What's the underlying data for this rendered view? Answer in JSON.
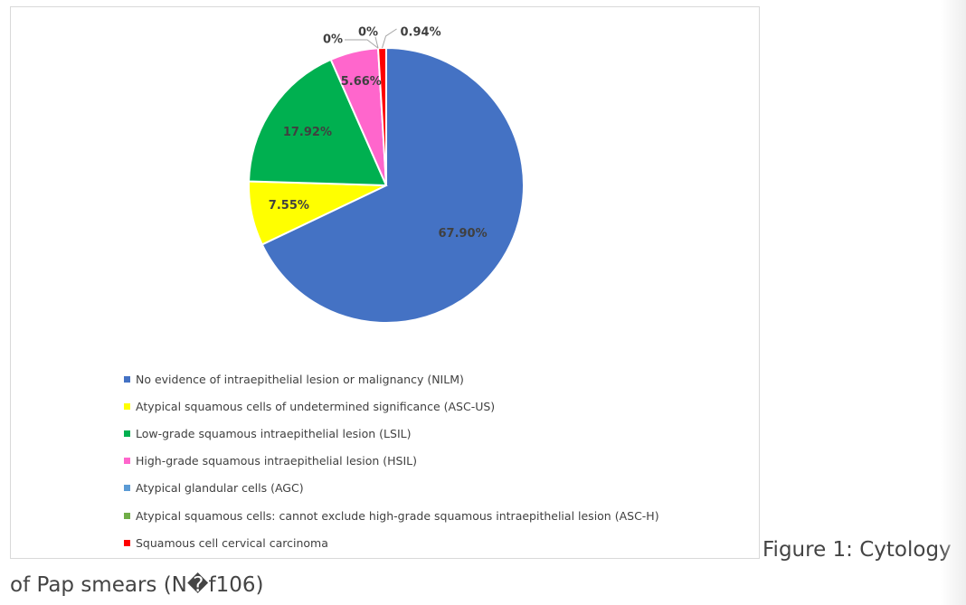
{
  "chart_data": {
    "type": "pie",
    "title": "",
    "slices": [
      {
        "name": "No evidence of intraepithelial lesion or malignancy (NILM)",
        "value": 67.9,
        "label": "67.90%",
        "color": "#4472c4"
      },
      {
        "name": "Atypical squamous cells of undetermined significance (ASC-US)",
        "value": 7.55,
        "label": "7.55%",
        "color": "#ffff00"
      },
      {
        "name": "Low-grade squamous intraepithelial lesion (LSIL)",
        "value": 17.92,
        "label": "17.92%",
        "color": "#00b050"
      },
      {
        "name": "High-grade squamous intraepithelial lesion (HSIL)",
        "value": 5.66,
        "label": "5.66%",
        "color": "#ff66cc"
      },
      {
        "name": " Atypical glandular cells (AGC)",
        "value": 0,
        "label": "0%",
        "color": "#5b9bd5"
      },
      {
        "name": "Atypical squamous cells: cannot exclude high-grade squamous intraepithelial lesion (ASC-H)",
        "value": 0,
        "label": "0%",
        "color": "#70ad47"
      },
      {
        "name": "Squamous cell cervical carcinoma",
        "value": 0.94,
        "label": "0.94%",
        "color": "#ff0000"
      }
    ],
    "legend_position": "bottom"
  },
  "caption": {
    "line1": "Figure 1: Cytology",
    "line2": "of Pap smears (N�f106)"
  }
}
